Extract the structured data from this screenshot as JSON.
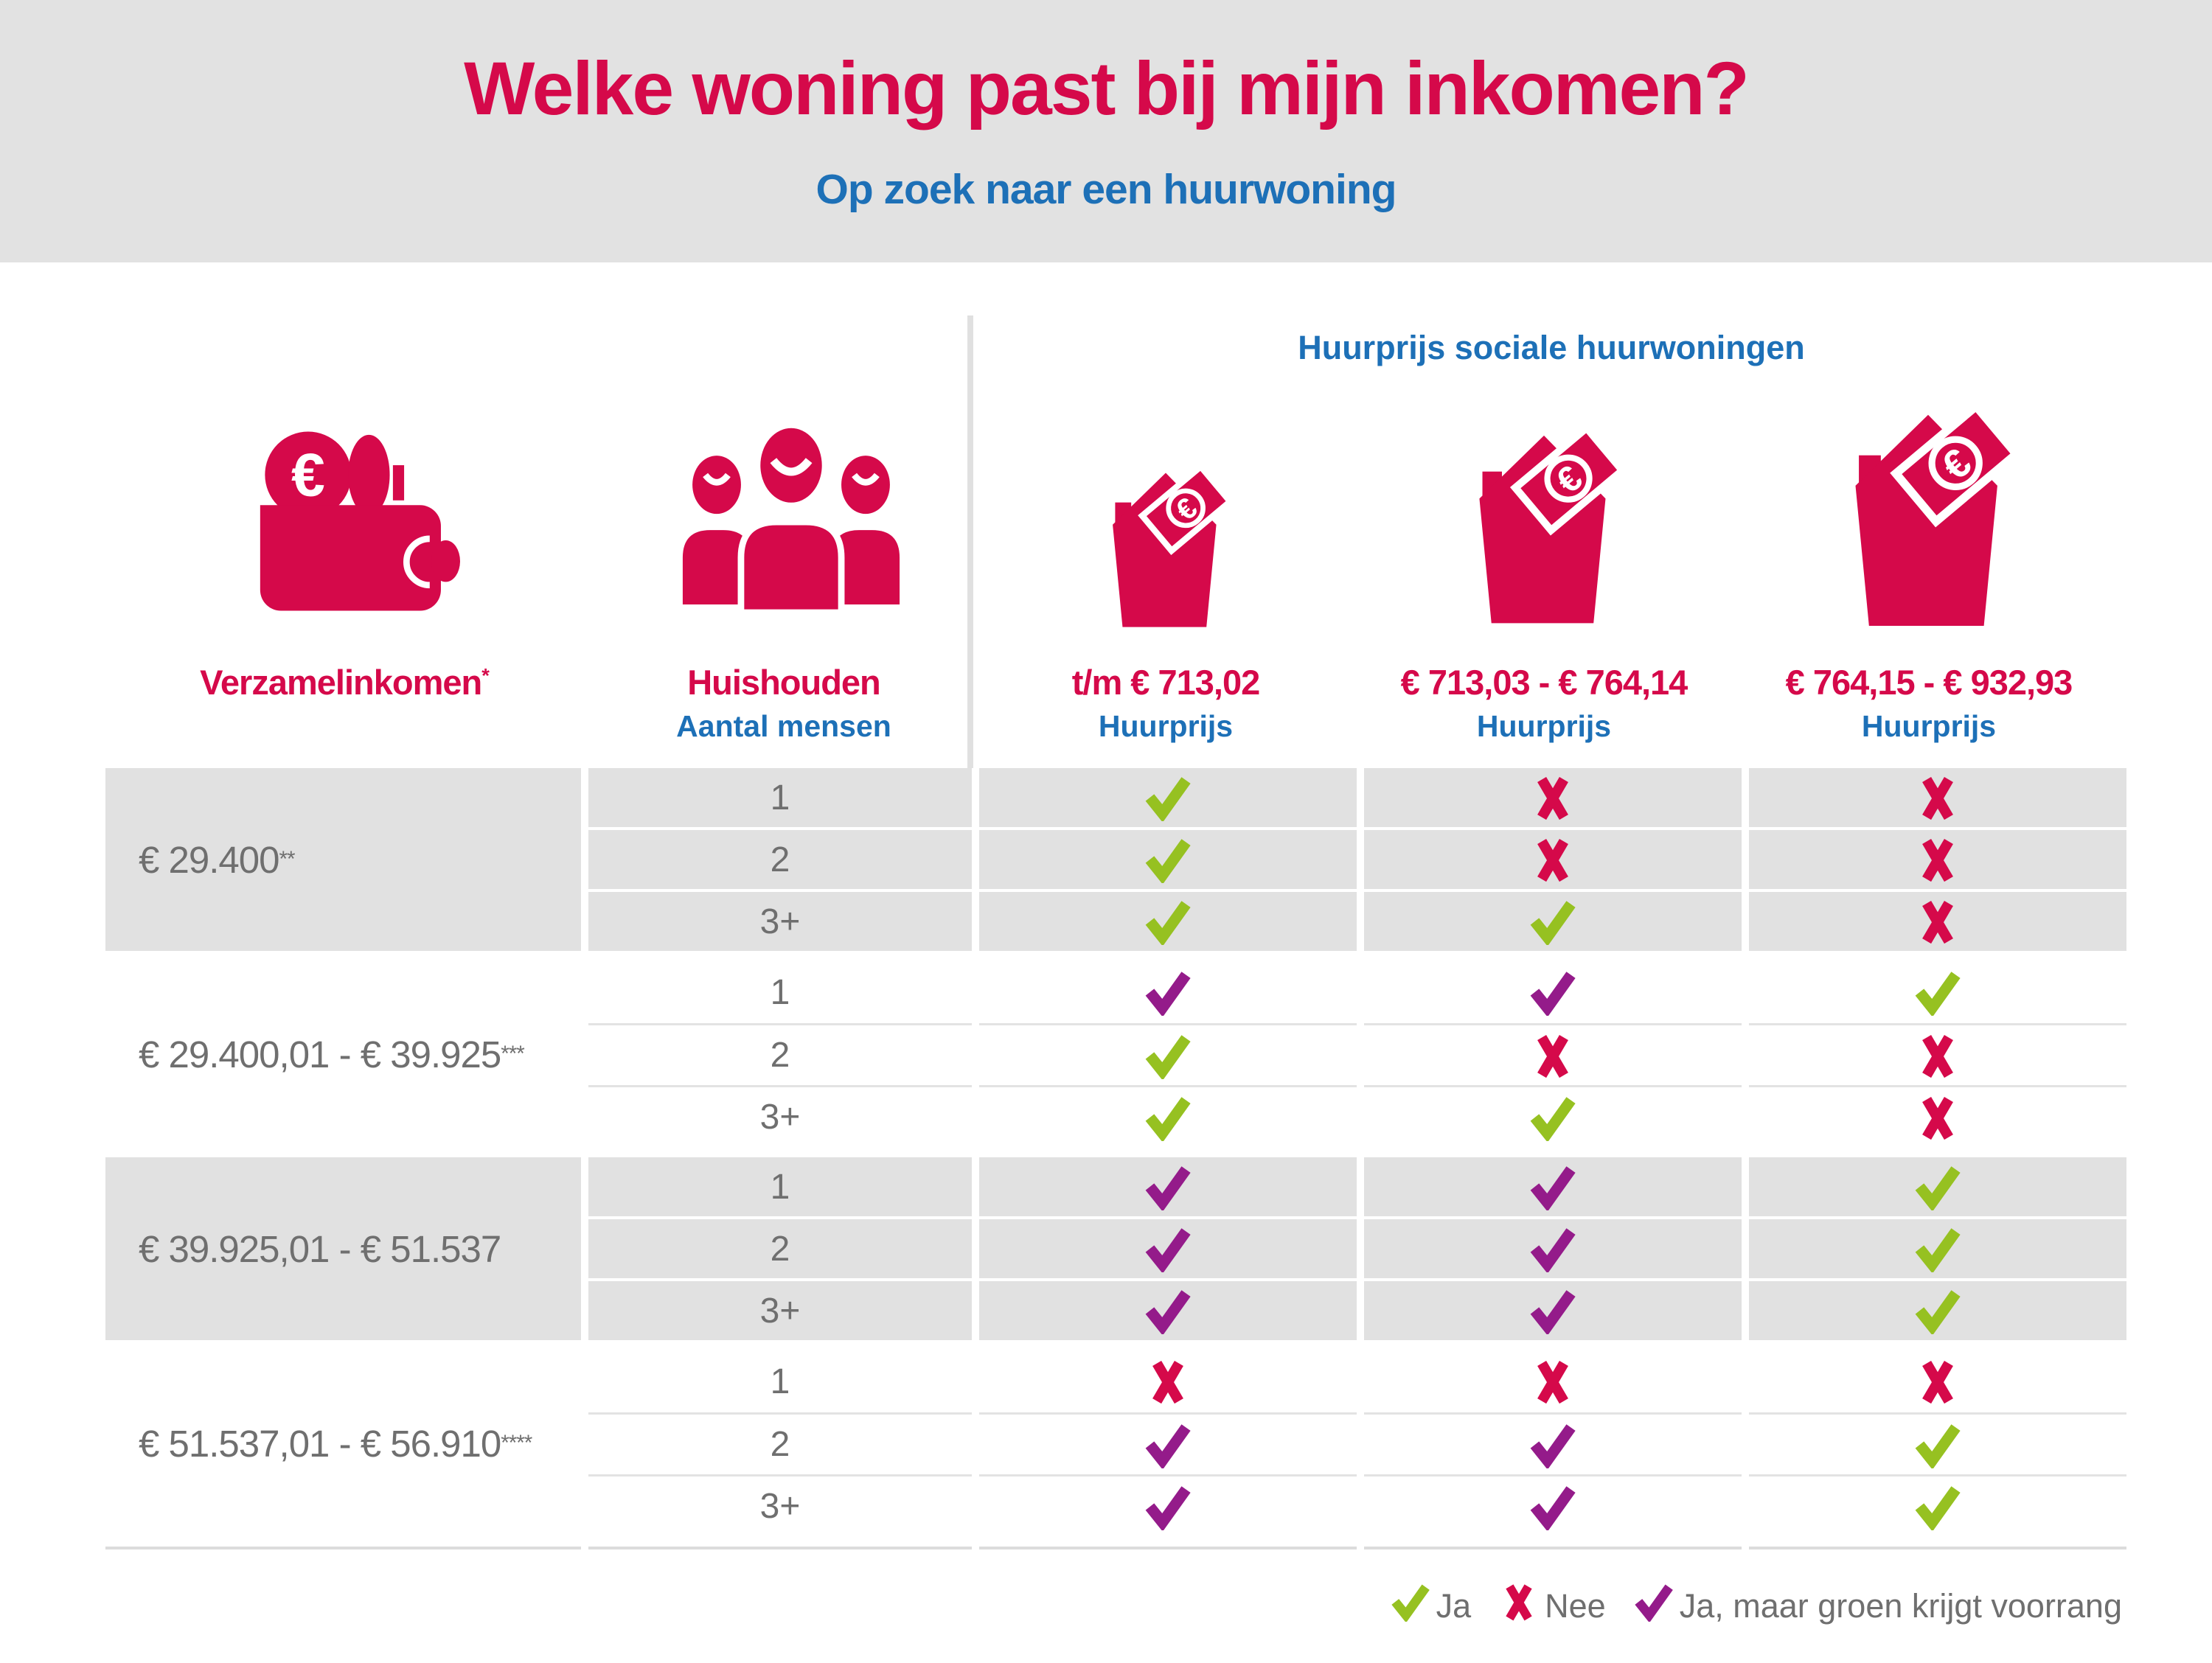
{
  "header": {
    "title": "Welke woning past bij mijn inkomen?",
    "subtitle": "Op zoek naar een huurwoning"
  },
  "table": {
    "group_header": "Huurprijs sociale huurwoningen",
    "columns": {
      "income": {
        "label": "Verzamelinkomen",
        "note": "*"
      },
      "household": {
        "label": "Huishouden",
        "sublabel": "Aantal mensen"
      },
      "prices": [
        {
          "range": "t/m € 713,02",
          "sublabel": "Huurprijs"
        },
        {
          "range": "€ 713,03 - € 764,14",
          "sublabel": "Huurprijs"
        },
        {
          "range": "€ 764,15 - € 932,93",
          "sublabel": "Huurprijs"
        }
      ]
    },
    "groups": [
      {
        "income": "€ 29.400",
        "note": "**",
        "rows": [
          {
            "household": "1",
            "cells": [
              "yes",
              "no",
              "no"
            ]
          },
          {
            "household": "2",
            "cells": [
              "yes",
              "no",
              "no"
            ]
          },
          {
            "household": "3+",
            "cells": [
              "yes",
              "yes",
              "no"
            ]
          }
        ]
      },
      {
        "income": "€ 29.400,01 - € 39.925",
        "note": "***",
        "rows": [
          {
            "household": "1",
            "cells": [
              "priority",
              "priority",
              "yes"
            ]
          },
          {
            "household": "2",
            "cells": [
              "yes",
              "no",
              "no"
            ]
          },
          {
            "household": "3+",
            "cells": [
              "yes",
              "yes",
              "no"
            ]
          }
        ]
      },
      {
        "income": "€ 39.925,01 - € 51.537",
        "note": "",
        "rows": [
          {
            "household": "1",
            "cells": [
              "priority",
              "priority",
              "yes"
            ]
          },
          {
            "household": "2",
            "cells": [
              "priority",
              "priority",
              "yes"
            ]
          },
          {
            "household": "3+",
            "cells": [
              "priority",
              "priority",
              "yes"
            ]
          }
        ]
      },
      {
        "income": "€ 51.537,01 - € 56.910",
        "note": "****",
        "rows": [
          {
            "household": "1",
            "cells": [
              "no",
              "no",
              "no"
            ]
          },
          {
            "household": "2",
            "cells": [
              "priority",
              "priority",
              "yes"
            ]
          },
          {
            "household": "3+",
            "cells": [
              "priority",
              "priority",
              "yes"
            ]
          }
        ]
      }
    ]
  },
  "symbols": {
    "yes": {
      "shape": "check",
      "color": "#96c121"
    },
    "no": {
      "shape": "cross",
      "color": "#d5094a"
    },
    "priority": {
      "shape": "check",
      "color": "#941b8a"
    }
  },
  "legend": {
    "items": [
      {
        "symbol": "yes",
        "label": "Ja"
      },
      {
        "symbol": "no",
        "label": "Nee"
      },
      {
        "symbol": "priority",
        "label": "Ja, maar groen krijgt voorrang"
      }
    ]
  },
  "colors": {
    "crimson": "#d5094a",
    "blue": "#1d70b7",
    "green": "#96c121",
    "purple": "#941b8a",
    "header_band_gray": "#e2e2e2",
    "cell_gray": "#e1e1e1",
    "text_gray": "#6f6f6f"
  }
}
